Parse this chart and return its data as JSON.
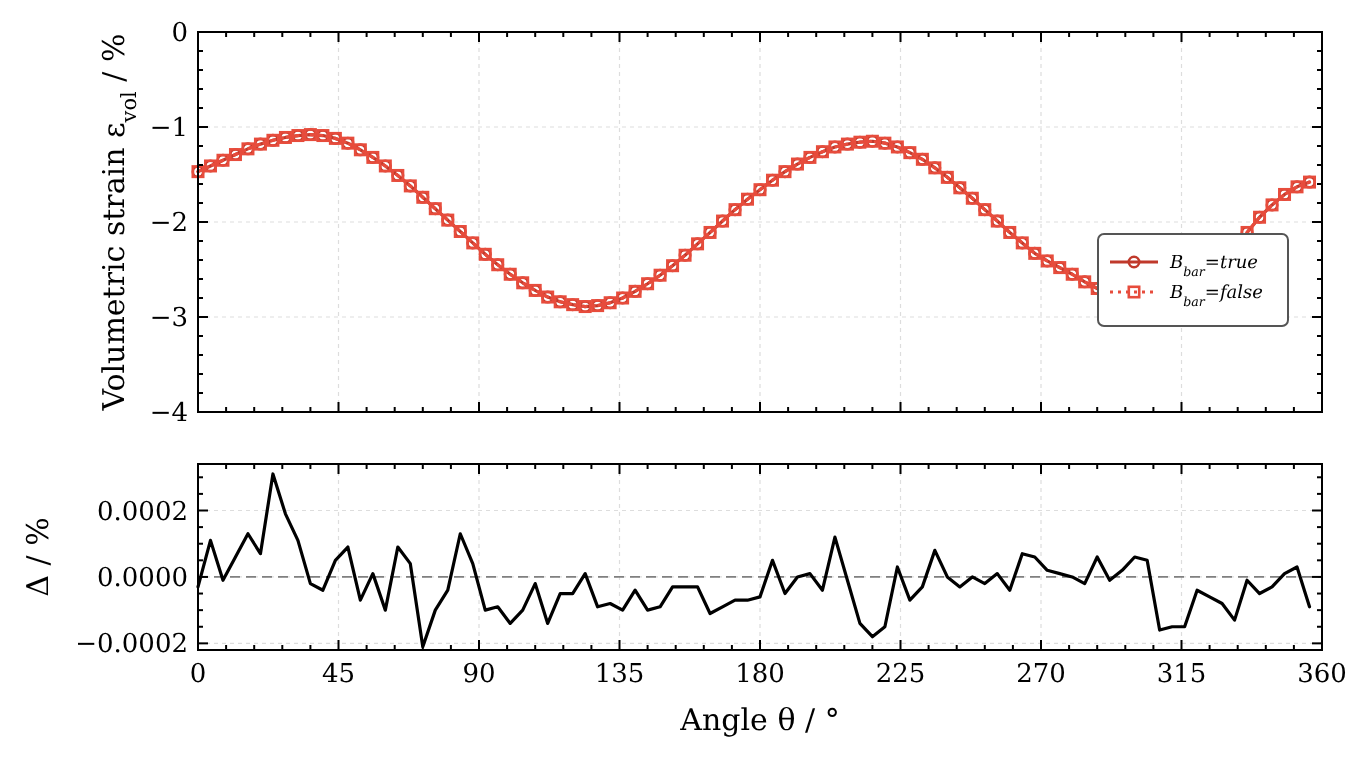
{
  "chart_data": [
    {
      "type": "line",
      "ylabel": "Volumetric strain ε$_{vol}$ / %",
      "x": [
        0,
        4,
        8,
        12,
        16,
        20,
        24,
        28,
        32,
        36,
        40,
        44,
        48,
        52,
        56,
        60,
        64,
        68,
        72,
        76,
        80,
        84,
        88,
        92,
        96,
        100,
        104,
        108,
        112,
        116,
        120,
        124,
        128,
        132,
        136,
        140,
        144,
        148,
        152,
        156,
        160,
        164,
        168,
        172,
        176,
        180,
        184,
        188,
        192,
        196,
        200,
        204,
        208,
        212,
        216,
        220,
        224,
        228,
        232,
        236,
        240,
        244,
        248,
        252,
        256,
        260,
        264,
        268,
        272,
        276,
        280,
        284,
        288,
        292,
        296,
        300,
        304,
        308,
        312,
        316,
        320,
        324,
        328,
        332,
        336,
        340,
        344,
        348,
        352,
        356
      ],
      "series": [
        {
          "name": "B$_{bar}$=true",
          "color": "#c0392b",
          "marker": "circle",
          "line_style": "solid",
          "values": [
            -1.47,
            -1.41,
            -1.35,
            -1.29,
            -1.23,
            -1.18,
            -1.14,
            -1.11,
            -1.09,
            -1.08,
            -1.09,
            -1.12,
            -1.17,
            -1.24,
            -1.32,
            -1.41,
            -1.51,
            -1.62,
            -1.74,
            -1.86,
            -1.98,
            -2.1,
            -2.22,
            -2.34,
            -2.45,
            -2.55,
            -2.64,
            -2.72,
            -2.79,
            -2.84,
            -2.87,
            -2.89,
            -2.88,
            -2.85,
            -2.8,
            -2.73,
            -2.65,
            -2.56,
            -2.46,
            -2.35,
            -2.23,
            -2.11,
            -1.99,
            -1.87,
            -1.76,
            -1.66,
            -1.56,
            -1.47,
            -1.39,
            -1.32,
            -1.26,
            -1.21,
            -1.18,
            -1.16,
            -1.15,
            -1.17,
            -1.21,
            -1.27,
            -1.34,
            -1.43,
            -1.53,
            -1.64,
            -1.75,
            -1.87,
            -1.99,
            -2.11,
            -2.22,
            -2.33,
            -2.41,
            -2.48,
            -2.55,
            -2.63,
            -2.7,
            null,
            null,
            null,
            null,
            null,
            null,
            null,
            null,
            null,
            null,
            null,
            -2.11,
            -1.95,
            -1.82,
            -1.71,
            -1.63,
            -1.58
          ]
        },
        {
          "name": "B$_{bar}$=false",
          "color": "#e74c3c",
          "marker": "square",
          "line_style": "dotted",
          "values": [
            -1.47,
            -1.41,
            -1.35,
            -1.29,
            -1.23,
            -1.18,
            -1.14,
            -1.11,
            -1.09,
            -1.08,
            -1.09,
            -1.12,
            -1.17,
            -1.24,
            -1.32,
            -1.41,
            -1.51,
            -1.62,
            -1.74,
            -1.86,
            -1.98,
            -2.1,
            -2.22,
            -2.34,
            -2.45,
            -2.55,
            -2.64,
            -2.72,
            -2.79,
            -2.84,
            -2.87,
            -2.89,
            -2.88,
            -2.85,
            -2.8,
            -2.73,
            -2.65,
            -2.56,
            -2.46,
            -2.35,
            -2.23,
            -2.11,
            -1.99,
            -1.87,
            -1.76,
            -1.66,
            -1.56,
            -1.47,
            -1.39,
            -1.32,
            -1.26,
            -1.21,
            -1.18,
            -1.16,
            -1.15,
            -1.17,
            -1.21,
            -1.27,
            -1.34,
            -1.43,
            -1.53,
            -1.64,
            -1.75,
            -1.87,
            -1.99,
            -2.11,
            -2.22,
            -2.33,
            -2.41,
            -2.48,
            -2.55,
            -2.63,
            -2.7,
            null,
            null,
            null,
            null,
            null,
            null,
            null,
            null,
            null,
            null,
            null,
            -2.11,
            -1.95,
            -1.82,
            -1.71,
            -1.63,
            -1.58
          ]
        }
      ],
      "xlim": [
        0,
        360
      ],
      "xticks": [
        0,
        {
          "value": 9,
          "label": null
        },
        {
          "value": 18,
          "label": null
        },
        {
          "value": 27,
          "label": null
        },
        {
          "value": 36,
          "label": null
        },
        45,
        {
          "value": 54,
          "label": null
        },
        {
          "value": 63,
          "label": null
        },
        {
          "value": 72,
          "label": null
        },
        {
          "value": 81,
          "label": null
        },
        90,
        {
          "value": 99,
          "label": null
        },
        {
          "value": 108,
          "label": null
        },
        {
          "value": 117,
          "label": null
        },
        {
          "value": 126,
          "label": null
        },
        135,
        {
          "value": 144,
          "label": null
        },
        {
          "value": 153,
          "label": null
        },
        {
          "value": 162,
          "label": null
        },
        {
          "value": 171,
          "label": null
        },
        180,
        {
          "value": 189,
          "label": null
        },
        {
          "value": 198,
          "label": null
        },
        {
          "value": 207,
          "label": null
        },
        {
          "value": 216,
          "label": null
        },
        225,
        {
          "value": 234,
          "label": null
        },
        {
          "value": 243,
          "label": null
        },
        {
          "value": 252,
          "label": null
        },
        {
          "value": 261,
          "label": null
        },
        270,
        {
          "value": 279,
          "label": null
        },
        {
          "value": 288,
          "label": null
        },
        {
          "value": 297,
          "label": null
        },
        {
          "value": 306,
          "label": null
        },
        315,
        {
          "value": 324,
          "label": null
        },
        {
          "value": 333,
          "label": null
        },
        {
          "value": 342,
          "label": null
        },
        {
          "value": 351,
          "label": null
        },
        360
      ],
      "ylim": [
        -4,
        0
      ],
      "yticks": [
        {
          "value": -4,
          "label": "−4"
        },
        {
          "value": -3.8,
          "label": null
        },
        {
          "value": -3.6,
          "label": null
        },
        {
          "value": -3.4,
          "label": null
        },
        {
          "value": -3.2,
          "label": null
        },
        {
          "value": -3,
          "label": "−3"
        },
        {
          "value": -2.8,
          "label": null
        },
        {
          "value": -2.6,
          "label": null
        },
        {
          "value": -2.4,
          "label": null
        },
        {
          "value": -2.2,
          "label": null
        },
        {
          "value": -2,
          "label": "−2"
        },
        {
          "value": -1.8,
          "label": null
        },
        {
          "value": -1.6,
          "label": null
        },
        {
          "value": -1.4,
          "label": null
        },
        {
          "value": -1.2,
          "label": null
        },
        {
          "value": -1,
          "label": "−1"
        },
        {
          "value": -0.8,
          "label": null
        },
        {
          "value": -0.6,
          "label": null
        },
        {
          "value": -0.4,
          "label": null
        },
        {
          "value": -0.2,
          "label": null
        },
        0
      ],
      "tick_labels": "y",
      "grid": true,
      "legend": "center right"
    },
    {
      "type": "line",
      "xlabel": "Angle θ / °",
      "ylabel": "Δ / %",
      "x": [
        0,
        4,
        8,
        12,
        16,
        20,
        24,
        28,
        32,
        36,
        40,
        44,
        48,
        52,
        56,
        60,
        64,
        68,
        72,
        76,
        80,
        84,
        88,
        92,
        96,
        100,
        104,
        108,
        112,
        116,
        120,
        124,
        128,
        132,
        136,
        140,
        144,
        148,
        152,
        156,
        160,
        164,
        168,
        172,
        176,
        180,
        184,
        188,
        192,
        196,
        200,
        204,
        208,
        212,
        216,
        220,
        224,
        228,
        232,
        236,
        240,
        244,
        248,
        252,
        256,
        260,
        264,
        268,
        272,
        276,
        280,
        284,
        288,
        292,
        296,
        300,
        304,
        308,
        312,
        316,
        320,
        324,
        328,
        332,
        336,
        340,
        344,
        348,
        352,
        356
      ],
      "series": [
        {
          "color": "#000000",
          "line_style": "solid",
          "marker": "none",
          "values": [
            -3e-05,
            0.00011,
            -1e-05,
            6e-05,
            0.00013,
            7e-05,
            0.00031,
            0.00019,
            0.00011,
            -2e-05,
            -4e-05,
            5e-05,
            9e-05,
            -7e-05,
            1e-05,
            -0.0001,
            9e-05,
            4e-05,
            -0.00021,
            -0.0001,
            -4e-05,
            0.00013,
            4e-05,
            -0.0001,
            -9e-05,
            -0.00014,
            -0.0001,
            -2e-05,
            -0.00014,
            -5e-05,
            -5e-05,
            1e-05,
            -9e-05,
            -8e-05,
            -0.0001,
            -4e-05,
            -0.0001,
            -9e-05,
            -3e-05,
            -3e-05,
            -3e-05,
            -0.00011,
            -9e-05,
            -7e-05,
            -7e-05,
            -6e-05,
            5e-05,
            -5e-05,
            0,
            1e-05,
            -4e-05,
            0.00012,
            -1e-05,
            -0.00014,
            -0.00018,
            -0.00015,
            3e-05,
            -7e-05,
            -3e-05,
            8e-05,
            0,
            -3e-05,
            0,
            -2e-05,
            1e-05,
            -4e-05,
            7e-05,
            6e-05,
            2e-05,
            1e-05,
            0,
            -2e-05,
            6e-05,
            -1e-05,
            2e-05,
            6e-05,
            5e-05,
            -0.00016,
            -0.00015,
            -0.00015,
            -4e-05,
            -6e-05,
            -8e-05,
            -0.00013,
            -1e-05,
            -5e-05,
            -3e-05,
            1e-05,
            3e-05,
            -9e-05
          ]
        }
      ],
      "xlim": [
        0,
        360
      ],
      "xticks": [
        0,
        {
          "value": 9,
          "label": null
        },
        {
          "value": 18,
          "label": null
        },
        {
          "value": 27,
          "label": null
        },
        {
          "value": 36,
          "label": null
        },
        45,
        {
          "value": 54,
          "label": null
        },
        {
          "value": 63,
          "label": null
        },
        {
          "value": 72,
          "label": null
        },
        {
          "value": 81,
          "label": null
        },
        90,
        {
          "value": 99,
          "label": null
        },
        {
          "value": 108,
          "label": null
        },
        {
          "value": 117,
          "label": null
        },
        {
          "value": 126,
          "label": null
        },
        135,
        {
          "value": 144,
          "label": null
        },
        {
          "value": 153,
          "label": null
        },
        {
          "value": 162,
          "label": null
        },
        {
          "value": 171,
          "label": null
        },
        180,
        {
          "value": 189,
          "label": null
        },
        {
          "value": 198,
          "label": null
        },
        {
          "value": 207,
          "label": null
        },
        {
          "value": 216,
          "label": null
        },
        225,
        {
          "value": 234,
          "label": null
        },
        {
          "value": 243,
          "label": null
        },
        {
          "value": 252,
          "label": null
        },
        {
          "value": 261,
          "label": null
        },
        270,
        {
          "value": 279,
          "label": null
        },
        {
          "value": 288,
          "label": null
        },
        {
          "value": 297,
          "label": null
        },
        {
          "value": 306,
          "label": null
        },
        315,
        {
          "value": 324,
          "label": null
        },
        {
          "value": 333,
          "label": null
        },
        {
          "value": 342,
          "label": null
        },
        {
          "value": 351,
          "label": null
        },
        360
      ],
      "ylim": [
        -0.00022,
        0.00034
      ],
      "yticks": [
        {
          "value": -0.0002,
          "label": "−0.0002"
        },
        {
          "value": -0.00015,
          "label": null
        },
        {
          "value": -0.0001,
          "label": null
        },
        {
          "value": -5e-05,
          "label": null
        },
        {
          "value": 0,
          "label": "0.0000"
        },
        {
          "value": 5e-05,
          "label": null
        },
        {
          "value": 0.0001,
          "label": null
        },
        {
          "value": 0.00015,
          "label": null
        },
        {
          "value": 0.0002,
          "label": "0.0002"
        },
        {
          "value": 0.00025,
          "label": null
        },
        {
          "value": 0.0003,
          "label": null
        }
      ],
      "grid": true,
      "legend": false,
      "ref_lines": [
        {
          "axis": "y",
          "value": 0,
          "color": "#808080",
          "line_style": "dashed"
        }
      ]
    }
  ]
}
